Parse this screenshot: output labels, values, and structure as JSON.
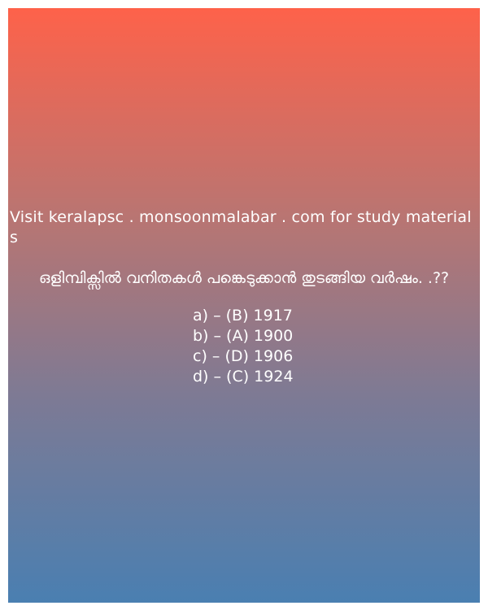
{
  "promo_text": "Visit keralapsc . monsoonmalabar . com for study materials",
  "question": {
    "text": "ഒളിമ്പിക്സിൽ വനിതകൾ പങ്കെടുക്കാൻ തുടങ്ങിയ വർഷം. .??"
  },
  "options": [
    {
      "label": "a) – (B) 1917"
    },
    {
      "label": "b) – (A) 1900"
    },
    {
      "label": "c) – (D) 1906"
    },
    {
      "label": "d) – (C) 1924"
    }
  ],
  "colors": {
    "gradient_top": "#fe624a",
    "gradient_bottom": "#4a7fb1",
    "text": "#ffffff"
  }
}
